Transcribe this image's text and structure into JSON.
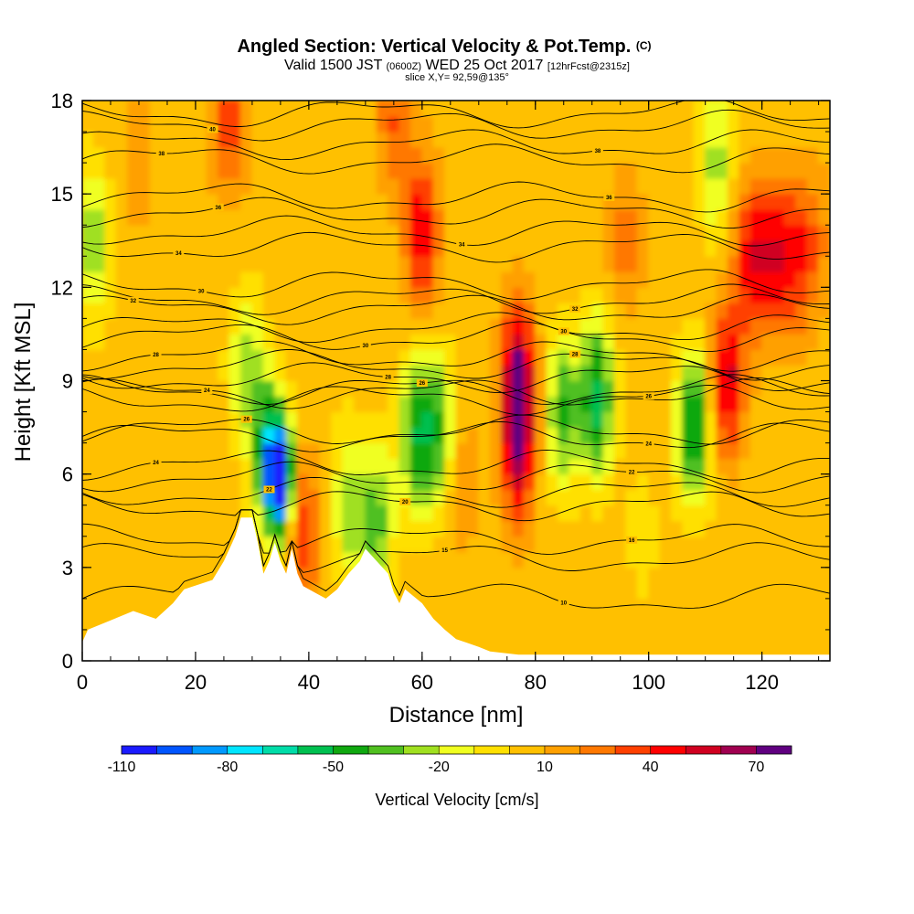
{
  "chart_data": {
    "type": "heatmap",
    "title_main": "Angled Section: Vertical Velocity & Pot.Temp.",
    "title_badge": "(C)",
    "subtitle_prefix": "Valid 1500 JST",
    "subtitle_utc": "(0600Z)",
    "subtitle_date": "WED 25 Oct 2017",
    "subtitle_fcst": "[12hrFcst@2315z]",
    "slice_label": "slice X,Y= 92,59@135°",
    "xlabel": "Distance [nm]",
    "ylabel": "Height [Kft MSL]",
    "xlim": [
      0,
      132
    ],
    "ylim": [
      0,
      18
    ],
    "x_ticks": [
      "0",
      "20",
      "40",
      "60",
      "80",
      "100",
      "120"
    ],
    "y_ticks": [
      "0",
      "3",
      "6",
      "9",
      "12",
      "15",
      "18"
    ],
    "colorbar_label": "Vertical Velocity [cm/s]",
    "colorbar_tick_labels": [
      "-110",
      "-80",
      "-50",
      "-20",
      "10",
      "40",
      "70"
    ],
    "colorbar_colors": [
      "#1a1aff",
      "#0055ff",
      "#0099ff",
      "#00e5ff",
      "#00dca8",
      "#00c050",
      "#10a810",
      "#50c020",
      "#a0e020",
      "#f0ff20",
      "#ffe000",
      "#ffc000",
      "#ffa000",
      "#ff7800",
      "#ff4000",
      "#ff0000",
      "#d00020",
      "#a00050",
      "#600080"
    ],
    "features": [
      {
        "x": 2,
        "z": 13.5,
        "w": -30
      },
      {
        "x": 26,
        "z": 17.5,
        "w": 40
      },
      {
        "x": 29,
        "z": 9.5,
        "w": -25
      },
      {
        "x": 35,
        "z": 5.8,
        "w": -110
      },
      {
        "x": 33,
        "z": 6.7,
        "w": -55
      },
      {
        "x": 39,
        "z": 4.2,
        "w": 40
      },
      {
        "x": 47,
        "z": 5,
        "w": -25
      },
      {
        "x": 52,
        "z": 4.5,
        "w": -35
      },
      {
        "x": 55,
        "z": 17.5,
        "w": 30
      },
      {
        "x": 60,
        "z": 13.8,
        "w": 50
      },
      {
        "x": 59,
        "z": 7.2,
        "w": -45
      },
      {
        "x": 63,
        "z": 7.5,
        "w": -35
      },
      {
        "x": 67,
        "z": 6,
        "w": 20
      },
      {
        "x": 77,
        "z": 9,
        "w": 70
      },
      {
        "x": 77,
        "z": 6.5,
        "w": 45
      },
      {
        "x": 85,
        "z": 8,
        "w": -40
      },
      {
        "x": 91,
        "z": 8.5,
        "w": -55
      },
      {
        "x": 96,
        "z": 13.5,
        "w": 25
      },
      {
        "x": 99,
        "z": 4,
        "w": -5
      },
      {
        "x": 108,
        "z": 7.5,
        "w": -55
      },
      {
        "x": 114,
        "z": 9,
        "w": 55
      },
      {
        "x": 118,
        "z": 13,
        "w": 45
      },
      {
        "x": 122,
        "z": 13,
        "w": 40
      },
      {
        "x": 126,
        "z": 13,
        "w": 40
      },
      {
        "x": 130,
        "z": 13.5,
        "w": 20
      },
      {
        "x": 112,
        "z": 16,
        "w": -25
      },
      {
        "x": 10,
        "z": 16,
        "w": 15
      }
    ],
    "terrain": [
      {
        "x": 0,
        "z": 0.6
      },
      {
        "x": 1,
        "z": 1.0
      },
      {
        "x": 5,
        "z": 1.3
      },
      {
        "x": 9,
        "z": 1.6
      },
      {
        "x": 13,
        "z": 1.35
      },
      {
        "x": 16,
        "z": 1.85
      },
      {
        "x": 18,
        "z": 2.3
      },
      {
        "x": 23,
        "z": 2.6
      },
      {
        "x": 25,
        "z": 3.2
      },
      {
        "x": 27,
        "z": 4.0
      },
      {
        "x": 28,
        "z": 4.6
      },
      {
        "x": 30,
        "z": 4.6
      },
      {
        "x": 31,
        "z": 3.8
      },
      {
        "x": 32,
        "z": 2.8
      },
      {
        "x": 33,
        "z": 3.2
      },
      {
        "x": 34,
        "z": 3.8
      },
      {
        "x": 35,
        "z": 3.2
      },
      {
        "x": 36,
        "z": 2.8
      },
      {
        "x": 37,
        "z": 3.6
      },
      {
        "x": 38,
        "z": 2.8
      },
      {
        "x": 39,
        "z": 2.4
      },
      {
        "x": 41,
        "z": 2.2
      },
      {
        "x": 43,
        "z": 2.0
      },
      {
        "x": 45,
        "z": 2.3
      },
      {
        "x": 47,
        "z": 2.8
      },
      {
        "x": 49,
        "z": 3.2
      },
      {
        "x": 50,
        "z": 3.6
      },
      {
        "x": 52,
        "z": 3.2
      },
      {
        "x": 54,
        "z": 2.8
      },
      {
        "x": 55,
        "z": 2.2
      },
      {
        "x": 56,
        "z": 1.85
      },
      {
        "x": 57,
        "z": 2.3
      },
      {
        "x": 60,
        "z": 1.85
      },
      {
        "x": 62,
        "z": 1.35
      },
      {
        "x": 64,
        "z": 1.0
      },
      {
        "x": 66,
        "z": 0.7
      },
      {
        "x": 70,
        "z": 0.45
      },
      {
        "x": 72,
        "z": 0.3
      },
      {
        "x": 77,
        "z": 0.2
      },
      {
        "x": 132,
        "z": 0.2
      }
    ],
    "isentropes": [
      {
        "label": "10",
        "z": 2.0,
        "label_x": 85
      },
      {
        "label": "15",
        "z": 3.3,
        "label_x": 64
      },
      {
        "label": "16",
        "z": 3.9,
        "label_x": 97
      },
      {
        "label": "20",
        "z": 5.0,
        "label_x": 57
      },
      {
        "label": "22",
        "z": 5.4,
        "label_x": 33
      },
      {
        "label": "22",
        "z": 5.9,
        "label_x": 97
      },
      {
        "label": "24",
        "z": 6.3,
        "label_x": 13
      },
      {
        "label": "26",
        "z": 7.4,
        "label_x": 29
      },
      {
        "label": "24",
        "z": 7.2,
        "label_x": 100
      },
      {
        "label": "24",
        "z": 8.6,
        "label_x": 22
      },
      {
        "label": "26",
        "z": 8.7,
        "label_x": 60
      },
      {
        "label": "26",
        "z": 8.4,
        "label_x": 100
      },
      {
        "label": "28",
        "z": 9.1,
        "label_x": 54
      },
      {
        "label": "28",
        "z": 9.5,
        "label_x": 87
      },
      {
        "label": "28",
        "z": 9.8,
        "label_x": 13
      },
      {
        "label": "30",
        "z": 10.4,
        "label_x": 50
      },
      {
        "label": "30",
        "z": 10.7,
        "label_x": 85
      },
      {
        "label": "32",
        "z": 11.3,
        "label_x": 9
      },
      {
        "label": "32",
        "z": 11.6,
        "label_x": 87
      },
      {
        "label": "30",
        "z": 12.1,
        "label_x": 21
      },
      {
        "label": "34",
        "z": 13.3,
        "label_x": 17
      },
      {
        "label": "34",
        "z": 13.8,
        "label_x": 67
      },
      {
        "label": "36",
        "z": 14.4,
        "label_x": 24
      },
      {
        "label": "36",
        "z": 14.9,
        "label_x": 93
      },
      {
        "label": "38",
        "z": 16.1,
        "label_x": 14
      },
      {
        "label": "38",
        "z": 16.6,
        "label_x": 91
      },
      {
        "label": "40",
        "z": 17.2,
        "label_x": 23
      },
      {
        "label": "40",
        "z": 17.6,
        "label_x": 110
      }
    ]
  }
}
